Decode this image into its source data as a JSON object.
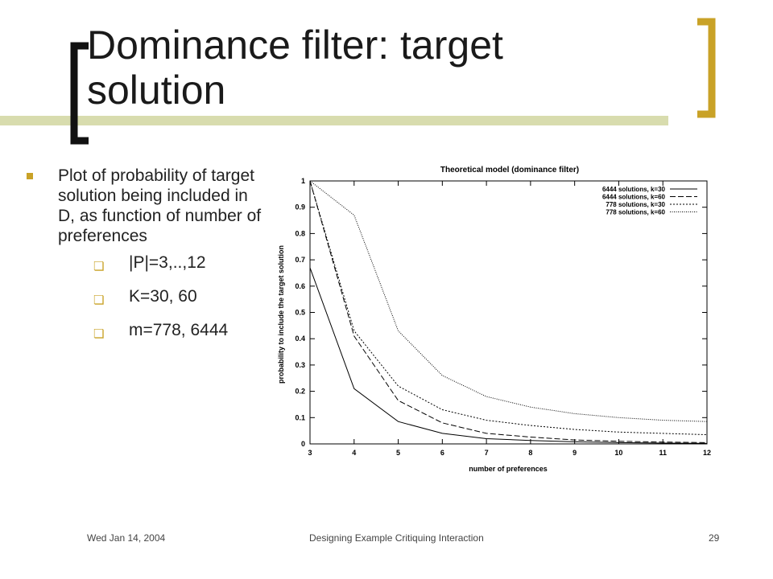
{
  "slide": {
    "title_line1": "Dominance  filter: target",
    "title_line2": "solution",
    "bullet": "Plot of probability of target solution being included in D, as function of number of preferences",
    "sub_bullets": [
      "|P|=3,..,12",
      "K=30, 60",
      "m=778, 6444"
    ],
    "accent_color": "#c9a227"
  },
  "footer": {
    "date": "Wed Jan 14, 2004",
    "center": "Designing Example Critiquing Interaction",
    "page": "29"
  },
  "chart_data": {
    "type": "line",
    "title": "Theoretical model (dominance filter)",
    "xlabel": "number of preferences",
    "ylabel": "probability to include the target solution",
    "x": [
      3,
      4,
      5,
      6,
      7,
      8,
      9,
      10,
      11,
      12
    ],
    "xlim": [
      3,
      12
    ],
    "ylim": [
      0,
      1
    ],
    "x_ticks": [
      "3",
      "4",
      "5",
      "6",
      "7",
      "8",
      "9",
      "10",
      "11",
      "12"
    ],
    "y_ticks": [
      "0",
      "0.1",
      "0.2",
      "0.3",
      "0.4",
      "0.5",
      "0.6",
      "0.7",
      "0.8",
      "0.9",
      "1"
    ],
    "legend_position": "top-right",
    "series": [
      {
        "name": "6444 solutions, k=30",
        "dash": "",
        "values": [
          0.67,
          0.21,
          0.085,
          0.04,
          0.02,
          0.013,
          0.008,
          0.005,
          0.003,
          0.002
        ]
      },
      {
        "name": "6444 solutions, k=60",
        "dash": "7,3",
        "values": [
          1.0,
          0.41,
          0.165,
          0.08,
          0.04,
          0.026,
          0.015,
          0.01,
          0.007,
          0.005
        ]
      },
      {
        "name": "778 solutions, k=30",
        "dash": "2,2",
        "values": [
          1.0,
          0.43,
          0.22,
          0.13,
          0.09,
          0.07,
          0.055,
          0.045,
          0.04,
          0.035
        ]
      },
      {
        "name": "778 solutions, k=60",
        "dash": "1,1.5",
        "values": [
          1.0,
          0.87,
          0.43,
          0.26,
          0.18,
          0.14,
          0.115,
          0.1,
          0.09,
          0.085
        ]
      }
    ]
  }
}
